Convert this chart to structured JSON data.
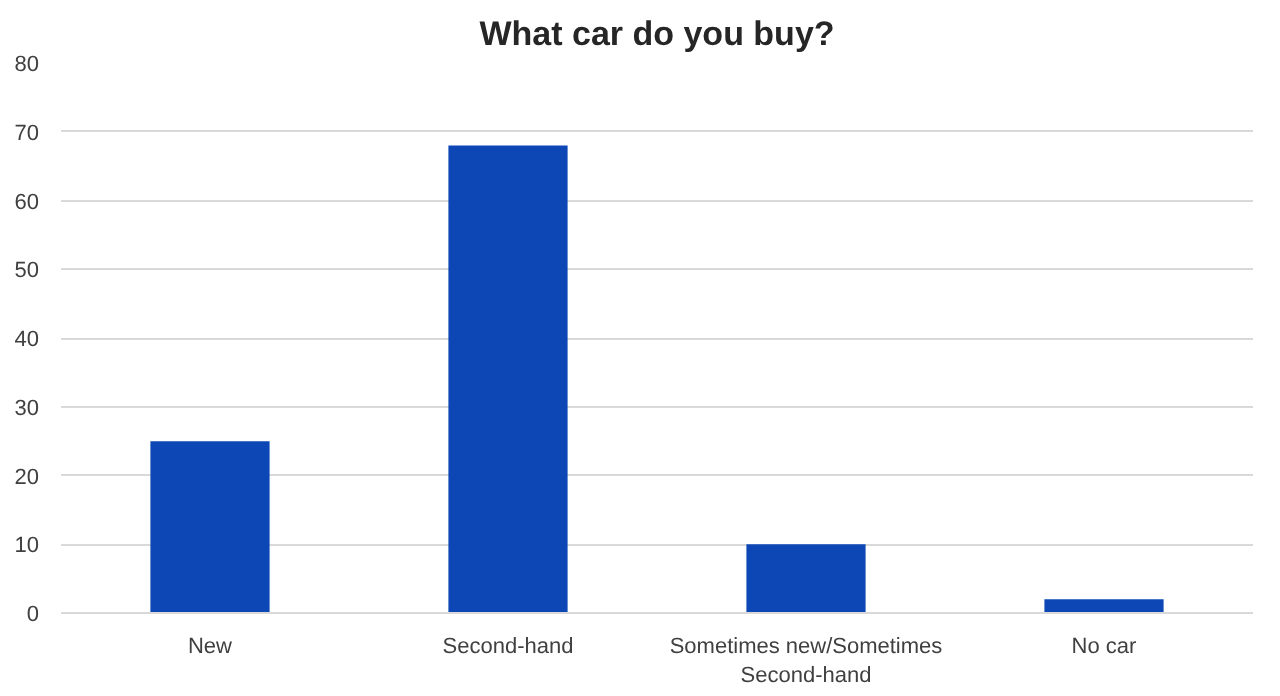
{
  "chart_data": {
    "type": "bar",
    "title": "What car do you buy?",
    "categories": [
      "New",
      "Second-hand",
      "Sometimes new/Sometimes Second-hand",
      "No car"
    ],
    "values": [
      25,
      68,
      10,
      2
    ],
    "color": "#0d47b5",
    "ylim": [
      0,
      80
    ],
    "yticks": [
      0,
      10,
      20,
      30,
      40,
      50,
      60,
      70,
      80
    ],
    "grid": "y"
  }
}
